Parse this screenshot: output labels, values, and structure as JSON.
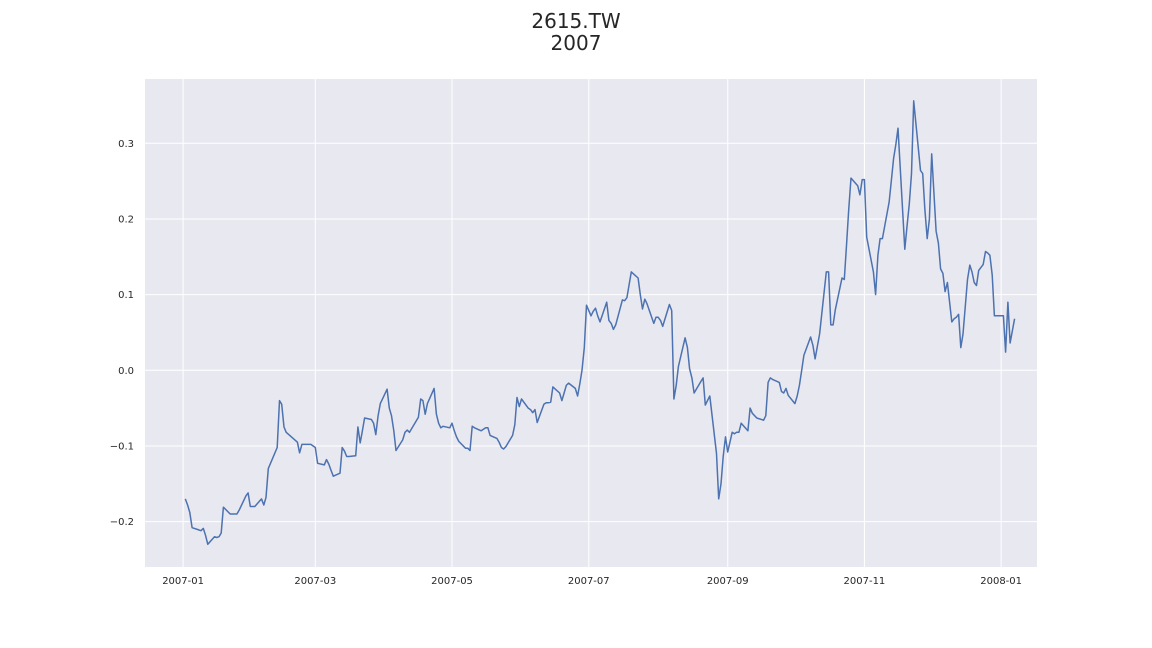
{
  "chart_data": {
    "type": "line",
    "title_line1": "2615.TW",
    "title_line2": "2007",
    "xlabel": "",
    "ylabel": "",
    "x_tick_labels": [
      "2007-01",
      "2007-03",
      "2007-05",
      "2007-07",
      "2007-09",
      "2007-11",
      "2008-01"
    ],
    "x_tick_dates": [
      "2007-01-01",
      "2007-03-01",
      "2007-05-01",
      "2007-07-01",
      "2007-09-01",
      "2007-11-01",
      "2008-01-01"
    ],
    "y_tick_labels": [
      "0.3",
      "0.2",
      "0.1",
      "0.0",
      "−0.1",
      "−0.2"
    ],
    "y_tick_values": [
      0.3,
      0.2,
      0.1,
      0.0,
      -0.1,
      -0.2
    ],
    "xlim": [
      "2006-12-15",
      "2008-01-17"
    ],
    "ylim": [
      -0.26,
      0.385
    ],
    "grid": true,
    "background": "#e8e8f0",
    "grid_color": "#ffffff",
    "line_color": "#4c72b0",
    "series": [
      {
        "points": [
          [
            "2007-01-02",
            -0.17
          ],
          [
            "2007-01-03",
            -0.178
          ],
          [
            "2007-01-04",
            -0.188
          ],
          [
            "2007-01-05",
            -0.208
          ],
          [
            "2007-01-08",
            -0.211
          ],
          [
            "2007-01-09",
            -0.212
          ],
          [
            "2007-01-10",
            -0.209
          ],
          [
            "2007-01-11",
            -0.218
          ],
          [
            "2007-01-12",
            -0.23
          ],
          [
            "2007-01-15",
            -0.22
          ],
          [
            "2007-01-16",
            -0.221
          ],
          [
            "2007-01-17",
            -0.22
          ],
          [
            "2007-01-18",
            -0.215
          ],
          [
            "2007-01-19",
            -0.181
          ],
          [
            "2007-01-22",
            -0.19
          ],
          [
            "2007-01-23",
            -0.19
          ],
          [
            "2007-01-24",
            -0.19
          ],
          [
            "2007-01-25",
            -0.19
          ],
          [
            "2007-01-26",
            -0.185
          ],
          [
            "2007-01-29",
            -0.166
          ],
          [
            "2007-01-30",
            -0.162
          ],
          [
            "2007-01-31",
            -0.18
          ],
          [
            "2007-02-01",
            -0.18
          ],
          [
            "2007-02-02",
            -0.18
          ],
          [
            "2007-02-05",
            -0.17
          ],
          [
            "2007-02-06",
            -0.178
          ],
          [
            "2007-02-07",
            -0.168
          ],
          [
            "2007-02-08",
            -0.13
          ],
          [
            "2007-02-12",
            -0.102
          ],
          [
            "2007-02-13",
            -0.04
          ],
          [
            "2007-02-14",
            -0.045
          ],
          [
            "2007-02-15",
            -0.075
          ],
          [
            "2007-02-16",
            -0.082
          ],
          [
            "2007-02-21",
            -0.095
          ],
          [
            "2007-02-22",
            -0.109
          ],
          [
            "2007-02-23",
            -0.098
          ],
          [
            "2007-02-26",
            -0.098
          ],
          [
            "2007-02-27",
            -0.098
          ],
          [
            "2007-03-01",
            -0.102
          ],
          [
            "2007-03-02",
            -0.123
          ],
          [
            "2007-03-05",
            -0.125
          ],
          [
            "2007-03-06",
            -0.118
          ],
          [
            "2007-03-07",
            -0.124
          ],
          [
            "2007-03-08",
            -0.132
          ],
          [
            "2007-03-09",
            -0.14
          ],
          [
            "2007-03-12",
            -0.136
          ],
          [
            "2007-03-13",
            -0.102
          ],
          [
            "2007-03-14",
            -0.107
          ],
          [
            "2007-03-15",
            -0.114
          ],
          [
            "2007-03-16",
            -0.114
          ],
          [
            "2007-03-19",
            -0.113
          ],
          [
            "2007-03-20",
            -0.075
          ],
          [
            "2007-03-21",
            -0.096
          ],
          [
            "2007-03-22",
            -0.08
          ],
          [
            "2007-03-23",
            -0.063
          ],
          [
            "2007-03-26",
            -0.065
          ],
          [
            "2007-03-27",
            -0.07
          ],
          [
            "2007-03-28",
            -0.085
          ],
          [
            "2007-03-29",
            -0.06
          ],
          [
            "2007-03-30",
            -0.044
          ],
          [
            "2007-04-02",
            -0.025
          ],
          [
            "2007-04-03",
            -0.05
          ],
          [
            "2007-04-04",
            -0.06
          ],
          [
            "2007-04-05",
            -0.08
          ],
          [
            "2007-04-06",
            -0.106
          ],
          [
            "2007-04-09",
            -0.092
          ],
          [
            "2007-04-10",
            -0.082
          ],
          [
            "2007-04-11",
            -0.079
          ],
          [
            "2007-04-12",
            -0.082
          ],
          [
            "2007-04-16",
            -0.062
          ],
          [
            "2007-04-17",
            -0.038
          ],
          [
            "2007-04-18",
            -0.04
          ],
          [
            "2007-04-19",
            -0.058
          ],
          [
            "2007-04-20",
            -0.044
          ],
          [
            "2007-04-23",
            -0.024
          ],
          [
            "2007-04-24",
            -0.058
          ],
          [
            "2007-04-25",
            -0.07
          ],
          [
            "2007-04-26",
            -0.076
          ],
          [
            "2007-04-27",
            -0.074
          ],
          [
            "2007-04-30",
            -0.076
          ],
          [
            "2007-05-01",
            -0.07
          ],
          [
            "2007-05-02",
            -0.08
          ],
          [
            "2007-05-03",
            -0.088
          ],
          [
            "2007-05-04",
            -0.094
          ],
          [
            "2007-05-07",
            -0.103
          ],
          [
            "2007-05-08",
            -0.103
          ],
          [
            "2007-05-09",
            -0.106
          ],
          [
            "2007-05-10",
            -0.074
          ],
          [
            "2007-05-11",
            -0.076
          ],
          [
            "2007-05-14",
            -0.08
          ],
          [
            "2007-05-15",
            -0.078
          ],
          [
            "2007-05-16",
            -0.076
          ],
          [
            "2007-05-17",
            -0.076
          ],
          [
            "2007-05-18",
            -0.086
          ],
          [
            "2007-05-21",
            -0.09
          ],
          [
            "2007-05-22",
            -0.095
          ],
          [
            "2007-05-23",
            -0.102
          ],
          [
            "2007-05-24",
            -0.104
          ],
          [
            "2007-05-25",
            -0.101
          ],
          [
            "2007-05-28",
            -0.086
          ],
          [
            "2007-05-29",
            -0.072
          ],
          [
            "2007-05-30",
            -0.036
          ],
          [
            "2007-05-31",
            -0.048
          ],
          [
            "2007-06-01",
            -0.038
          ],
          [
            "2007-06-04",
            -0.05
          ],
          [
            "2007-06-05",
            -0.052
          ],
          [
            "2007-06-06",
            -0.056
          ],
          [
            "2007-06-07",
            -0.052
          ],
          [
            "2007-06-08",
            -0.069
          ],
          [
            "2007-06-11",
            -0.045
          ],
          [
            "2007-06-12",
            -0.043
          ],
          [
            "2007-06-13",
            -0.043
          ],
          [
            "2007-06-14",
            -0.042
          ],
          [
            "2007-06-15",
            -0.022
          ],
          [
            "2007-06-18",
            -0.03
          ],
          [
            "2007-06-19",
            -0.04
          ],
          [
            "2007-06-20",
            -0.03
          ],
          [
            "2007-06-21",
            -0.02
          ],
          [
            "2007-06-22",
            -0.017
          ],
          [
            "2007-06-25",
            -0.024
          ],
          [
            "2007-06-26",
            -0.034
          ],
          [
            "2007-06-27",
            -0.018
          ],
          [
            "2007-06-28",
            0.0
          ],
          [
            "2007-06-29",
            0.03
          ],
          [
            "2007-06-30",
            0.086
          ],
          [
            "2007-07-02",
            0.072
          ],
          [
            "2007-07-03",
            0.078
          ],
          [
            "2007-07-04",
            0.082
          ],
          [
            "2007-07-05",
            0.072
          ],
          [
            "2007-07-06",
            0.064
          ],
          [
            "2007-07-09",
            0.09
          ],
          [
            "2007-07-10",
            0.066
          ],
          [
            "2007-07-11",
            0.062
          ],
          [
            "2007-07-12",
            0.054
          ],
          [
            "2007-07-13",
            0.06
          ],
          [
            "2007-07-16",
            0.093
          ],
          [
            "2007-07-17",
            0.092
          ],
          [
            "2007-07-18",
            0.096
          ],
          [
            "2007-07-19",
            0.113
          ],
          [
            "2007-07-20",
            0.13
          ],
          [
            "2007-07-23",
            0.122
          ],
          [
            "2007-07-24",
            0.1
          ],
          [
            "2007-07-25",
            0.081
          ],
          [
            "2007-07-26",
            0.094
          ],
          [
            "2007-07-27",
            0.088
          ],
          [
            "2007-07-30",
            0.062
          ],
          [
            "2007-07-31",
            0.07
          ],
          [
            "2007-08-01",
            0.07
          ],
          [
            "2007-08-02",
            0.066
          ],
          [
            "2007-08-03",
            0.058
          ],
          [
            "2007-08-06",
            0.087
          ],
          [
            "2007-08-07",
            0.079
          ],
          [
            "2007-08-08",
            -0.038
          ],
          [
            "2007-08-09",
            -0.02
          ],
          [
            "2007-08-10",
            0.005
          ],
          [
            "2007-08-13",
            0.043
          ],
          [
            "2007-08-14",
            0.03
          ],
          [
            "2007-08-15",
            0.002
          ],
          [
            "2007-08-16",
            -0.01
          ],
          [
            "2007-08-17",
            -0.03
          ],
          [
            "2007-08-20",
            -0.015
          ],
          [
            "2007-08-21",
            -0.01
          ],
          [
            "2007-08-22",
            -0.046
          ],
          [
            "2007-08-23",
            -0.04
          ],
          [
            "2007-08-24",
            -0.034
          ],
          [
            "2007-08-27",
            -0.11
          ],
          [
            "2007-08-28",
            -0.17
          ],
          [
            "2007-08-29",
            -0.15
          ],
          [
            "2007-08-30",
            -0.114
          ],
          [
            "2007-08-31",
            -0.088
          ],
          [
            "2007-09-01",
            -0.108
          ],
          [
            "2007-09-03",
            -0.082
          ],
          [
            "2007-09-04",
            -0.084
          ],
          [
            "2007-09-05",
            -0.082
          ],
          [
            "2007-09-06",
            -0.082
          ],
          [
            "2007-09-07",
            -0.07
          ],
          [
            "2007-09-10",
            -0.08
          ],
          [
            "2007-09-11",
            -0.05
          ],
          [
            "2007-09-12",
            -0.057
          ],
          [
            "2007-09-13",
            -0.06
          ],
          [
            "2007-09-14",
            -0.063
          ],
          [
            "2007-09-17",
            -0.066
          ],
          [
            "2007-09-18",
            -0.06
          ],
          [
            "2007-09-19",
            -0.016
          ],
          [
            "2007-09-20",
            -0.01
          ],
          [
            "2007-09-21",
            -0.012
          ],
          [
            "2007-09-24",
            -0.016
          ],
          [
            "2007-09-25",
            -0.028
          ],
          [
            "2007-09-26",
            -0.03
          ],
          [
            "2007-09-27",
            -0.024
          ],
          [
            "2007-09-28",
            -0.033
          ],
          [
            "2007-10-01",
            -0.044
          ],
          [
            "2007-10-02",
            -0.034
          ],
          [
            "2007-10-03",
            -0.02
          ],
          [
            "2007-10-04",
            0.0
          ],
          [
            "2007-10-05",
            0.02
          ],
          [
            "2007-10-08",
            0.044
          ],
          [
            "2007-10-09",
            0.033
          ],
          [
            "2007-10-10",
            0.015
          ],
          [
            "2007-10-11",
            0.032
          ],
          [
            "2007-10-12",
            0.048
          ],
          [
            "2007-10-15",
            0.13
          ],
          [
            "2007-10-16",
            0.13
          ],
          [
            "2007-10-17",
            0.06
          ],
          [
            "2007-10-18",
            0.06
          ],
          [
            "2007-10-19",
            0.08
          ],
          [
            "2007-10-22",
            0.122
          ],
          [
            "2007-10-23",
            0.12
          ],
          [
            "2007-10-24",
            0.165
          ],
          [
            "2007-10-25",
            0.212
          ],
          [
            "2007-10-26",
            0.254
          ],
          [
            "2007-10-29",
            0.244
          ],
          [
            "2007-10-30",
            0.232
          ],
          [
            "2007-10-31",
            0.252
          ],
          [
            "2007-11-01",
            0.252
          ],
          [
            "2007-11-02",
            0.176
          ],
          [
            "2007-11-05",
            0.13
          ],
          [
            "2007-11-06",
            0.1
          ],
          [
            "2007-11-07",
            0.152
          ],
          [
            "2007-11-08",
            0.174
          ],
          [
            "2007-11-09",
            0.174
          ],
          [
            "2007-11-12",
            0.222
          ],
          [
            "2007-11-13",
            0.25
          ],
          [
            "2007-11-14",
            0.28
          ],
          [
            "2007-11-15",
            0.298
          ],
          [
            "2007-11-16",
            0.32
          ],
          [
            "2007-11-19",
            0.16
          ],
          [
            "2007-11-20",
            0.19
          ],
          [
            "2007-11-21",
            0.22
          ],
          [
            "2007-11-22",
            0.26
          ],
          [
            "2007-11-23",
            0.356
          ],
          [
            "2007-11-26",
            0.264
          ],
          [
            "2007-11-27",
            0.26
          ],
          [
            "2007-11-28",
            0.212
          ],
          [
            "2007-11-29",
            0.174
          ],
          [
            "2007-11-30",
            0.2
          ],
          [
            "2007-12-01",
            0.286
          ],
          [
            "2007-12-03",
            0.184
          ],
          [
            "2007-12-04",
            0.168
          ],
          [
            "2007-12-05",
            0.134
          ],
          [
            "2007-12-06",
            0.128
          ],
          [
            "2007-12-07",
            0.104
          ],
          [
            "2007-12-08",
            0.116
          ],
          [
            "2007-12-10",
            0.064
          ],
          [
            "2007-12-11",
            0.068
          ],
          [
            "2007-12-12",
            0.07
          ],
          [
            "2007-12-13",
            0.074
          ],
          [
            "2007-12-14",
            0.03
          ],
          [
            "2007-12-15",
            0.048
          ],
          [
            "2007-12-17",
            0.12
          ],
          [
            "2007-12-18",
            0.139
          ],
          [
            "2007-12-19",
            0.13
          ],
          [
            "2007-12-20",
            0.116
          ],
          [
            "2007-12-21",
            0.112
          ],
          [
            "2007-12-22",
            0.132
          ],
          [
            "2007-12-24",
            0.14
          ],
          [
            "2007-12-25",
            0.157
          ],
          [
            "2007-12-26",
            0.155
          ],
          [
            "2007-12-27",
            0.152
          ],
          [
            "2007-12-28",
            0.126
          ],
          [
            "2007-12-29",
            0.072
          ],
          [
            "2008-01-02",
            0.072
          ],
          [
            "2008-01-03",
            0.024
          ],
          [
            "2008-01-04",
            0.09
          ],
          [
            "2008-01-05",
            0.036
          ],
          [
            "2008-01-07",
            0.068
          ]
        ]
      }
    ]
  }
}
